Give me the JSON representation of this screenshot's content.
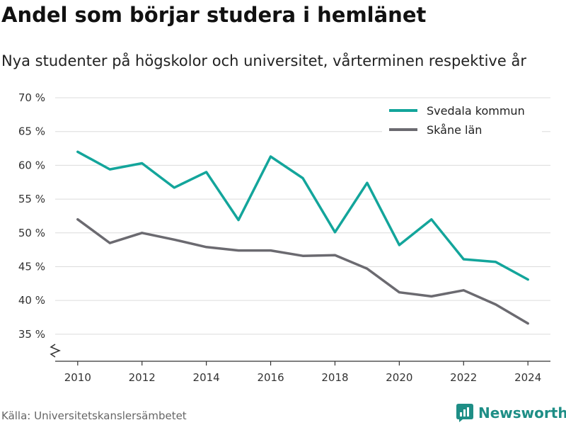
{
  "title": "Andel som börjar studera i hemlänet",
  "subtitle": "Nya studenter på högskolor och universitet, vårterminen respektive år",
  "source": "Källa: Universitetskanslersämbetet",
  "brand": {
    "name": "Newsworthy",
    "icon": "newsworthy-logo-icon",
    "color": "#1e8e86"
  },
  "chart_data": {
    "type": "line",
    "x": [
      2010,
      2011,
      2012,
      2013,
      2014,
      2015,
      2016,
      2017,
      2018,
      2019,
      2020,
      2021,
      2022,
      2023,
      2024
    ],
    "series": [
      {
        "name": "Svedala kommun",
        "color": "#13a59b",
        "values": [
          62.0,
          59.4,
          60.3,
          56.7,
          59.0,
          51.9,
          61.3,
          58.1,
          50.1,
          57.4,
          48.2,
          52.0,
          46.1,
          45.7,
          43.1
        ]
      },
      {
        "name": "Skåne län",
        "color": "#6b6a70",
        "values": [
          52.0,
          48.5,
          50.0,
          49.0,
          47.9,
          47.4,
          47.4,
          46.6,
          46.7,
          44.7,
          41.2,
          40.6,
          41.5,
          39.4,
          36.6
        ]
      }
    ],
    "xticks": [
      2010,
      2012,
      2014,
      2016,
      2018,
      2020,
      2022,
      2024
    ],
    "yticks": [
      35,
      40,
      45,
      50,
      55,
      60,
      65,
      70
    ],
    "ytick_labels": [
      "35 %",
      "40 %",
      "45 %",
      "50 %",
      "55 %",
      "60 %",
      "65 %",
      "70 %"
    ],
    "xlim": [
      2009.3,
      2024.7
    ],
    "ylim": [
      31,
      70
    ],
    "grid": true,
    "y_axis_break": true,
    "legend_position": "top-right",
    "title": "Andel som börjar studera i hemlänet",
    "xlabel": "",
    "ylabel": ""
  }
}
